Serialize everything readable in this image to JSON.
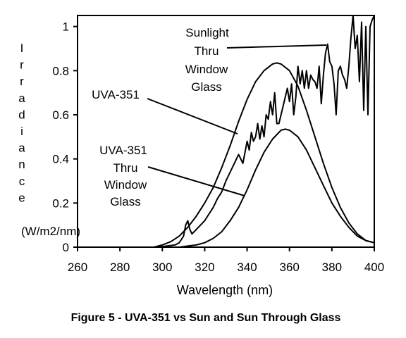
{
  "chart_data": {
    "type": "line",
    "xlabel": "Wavelength (nm)",
    "ylabel": "Irradiance",
    "ylabel_unit": "(W/m2/nm)",
    "caption": "Figure 5 - UVA-351 vs Sun and Sun Through Glass",
    "xlim": [
      260,
      400
    ],
    "ylim": [
      0,
      1.05
    ],
    "x_ticks": [
      260,
      280,
      300,
      320,
      340,
      360,
      380,
      400
    ],
    "y_ticks": [
      0,
      0.2,
      0.4,
      0.6,
      0.8,
      1
    ],
    "y_tick_labels": [
      "0",
      "0.2",
      "0.4",
      "0.6",
      "0.8",
      "1"
    ],
    "grid": false,
    "annotations": [
      {
        "lines": [
          "Sunlight",
          "Thru",
          "Window",
          "Glass"
        ],
        "target_series": "Sunlight Thru Window Glass"
      },
      {
        "lines": [
          "UVA-351"
        ],
        "target_series": "UVA-351"
      },
      {
        "lines": [
          "UVA-351",
          "Thru",
          "Window",
          "Glass"
        ],
        "target_series": "UVA-351 Thru Window Glass"
      }
    ],
    "series": [
      {
        "name": "UVA-351",
        "x": [
          296,
          300,
          304,
          308,
          312,
          316,
          320,
          324,
          328,
          332,
          336,
          340,
          344,
          348,
          352,
          354,
          356,
          360,
          364,
          368,
          372,
          376,
          380,
          384,
          388,
          392,
          396,
          400
        ],
        "y": [
          0.0,
          0.01,
          0.025,
          0.05,
          0.09,
          0.14,
          0.2,
          0.27,
          0.36,
          0.46,
          0.57,
          0.67,
          0.75,
          0.8,
          0.83,
          0.835,
          0.83,
          0.8,
          0.73,
          0.62,
          0.5,
          0.38,
          0.27,
          0.18,
          0.11,
          0.06,
          0.03,
          0.02
        ]
      },
      {
        "name": "Sunlight Thru Window Glass",
        "x": [
          298,
          302,
          306,
          308,
          310,
          311,
          312,
          313,
          314,
          316,
          318,
          320,
          322,
          324,
          326,
          328,
          330,
          332,
          334,
          336,
          338,
          340,
          341,
          342,
          343,
          344,
          345,
          346,
          347,
          348,
          349,
          350,
          351,
          352,
          353,
          354,
          355,
          356,
          357,
          358,
          359,
          360,
          361,
          362,
          363,
          364,
          365,
          366,
          367,
          368,
          369,
          370,
          371,
          372,
          373,
          374,
          375,
          376,
          377,
          378,
          379,
          380,
          381,
          382,
          383,
          384,
          385,
          386,
          387,
          388,
          389,
          390,
          391,
          392,
          393,
          394,
          395,
          396,
          397,
          398,
          399,
          400
        ],
        "y": [
          0.0,
          0.005,
          0.01,
          0.02,
          0.05,
          0.1,
          0.12,
          0.08,
          0.06,
          0.08,
          0.1,
          0.12,
          0.15,
          0.18,
          0.22,
          0.25,
          0.3,
          0.34,
          0.38,
          0.42,
          0.38,
          0.48,
          0.44,
          0.52,
          0.48,
          0.5,
          0.56,
          0.49,
          0.55,
          0.5,
          0.6,
          0.58,
          0.66,
          0.6,
          0.7,
          0.56,
          0.56,
          0.6,
          0.64,
          0.68,
          0.72,
          0.66,
          0.74,
          0.6,
          0.68,
          0.82,
          0.74,
          0.8,
          0.72,
          0.8,
          0.72,
          0.78,
          0.76,
          0.75,
          0.72,
          0.82,
          0.65,
          0.78,
          0.88,
          0.92,
          0.84,
          0.82,
          0.74,
          0.6,
          0.8,
          0.82,
          0.78,
          0.76,
          0.72,
          0.82,
          0.95,
          1.05,
          0.9,
          0.96,
          0.75,
          1.02,
          0.62,
          1.0,
          0.6,
          1.0,
          1.03,
          1.05
        ]
      },
      {
        "name": "UVA-351 Thru Window Glass",
        "x": [
          308,
          312,
          316,
          320,
          324,
          328,
          332,
          336,
          340,
          344,
          348,
          352,
          356,
          358,
          360,
          364,
          368,
          372,
          376,
          380,
          384,
          388,
          392,
          396,
          400
        ],
        "y": [
          0.0,
          0.005,
          0.01,
          0.02,
          0.04,
          0.07,
          0.12,
          0.18,
          0.26,
          0.35,
          0.43,
          0.49,
          0.53,
          0.535,
          0.53,
          0.5,
          0.44,
          0.36,
          0.28,
          0.2,
          0.14,
          0.09,
          0.05,
          0.03,
          0.02
        ]
      }
    ]
  }
}
